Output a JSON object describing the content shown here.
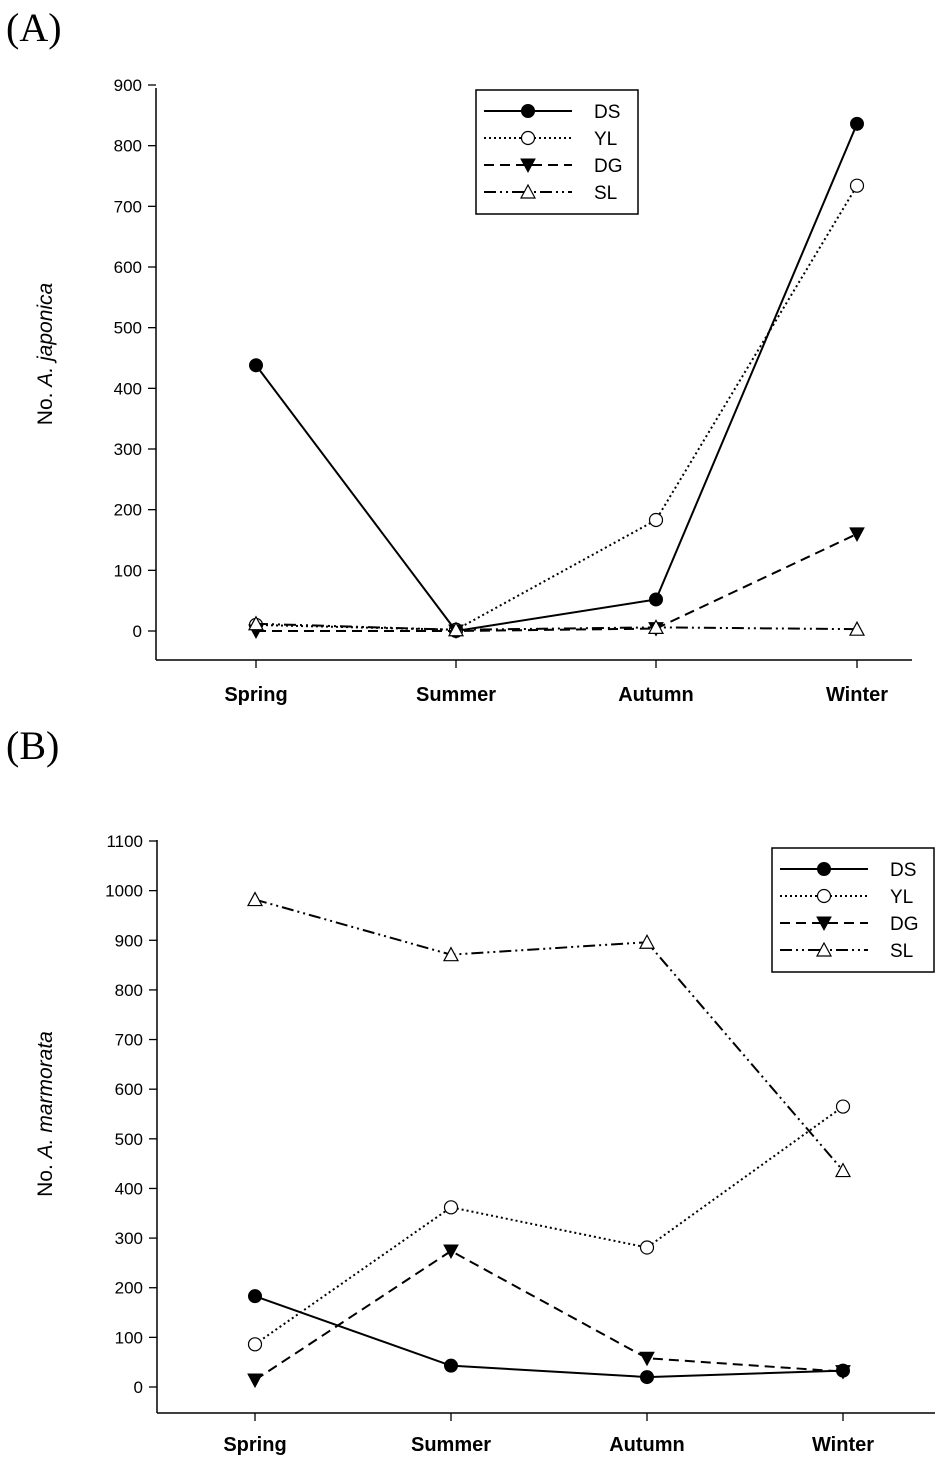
{
  "panels": {
    "a": {
      "label": "(A)"
    },
    "b": {
      "label": "(B)"
    }
  },
  "chart_data": [
    {
      "type": "line",
      "categories": [
        "Spring",
        "Summer",
        "Autumn",
        "Winter"
      ],
      "ylabel_prefix": "No. ",
      "ylabel_species": "A. japonica",
      "ylim": [
        0,
        900
      ],
      "yticks": [
        0,
        100,
        200,
        300,
        400,
        500,
        600,
        700,
        800,
        900
      ],
      "grid": false,
      "legend_position": "top-center",
      "series": [
        {
          "name": "DS",
          "values": [
            438,
            0,
            52,
            836
          ],
          "marker": "filled-circle",
          "dash": "solid"
        },
        {
          "name": "YL",
          "values": [
            10,
            2,
            183,
            734
          ],
          "marker": "open-circle",
          "dash": "dotted"
        },
        {
          "name": "DG",
          "values": [
            0,
            0,
            4,
            160
          ],
          "marker": "filled-triangle-down",
          "dash": "dashed"
        },
        {
          "name": "SL",
          "values": [
            12,
            2,
            6,
            3
          ],
          "marker": "open-triangle-up",
          "dash": "dash-dot-dot"
        }
      ]
    },
    {
      "type": "line",
      "categories": [
        "Spring",
        "Summer",
        "Autumn",
        "Winter"
      ],
      "ylabel_prefix": "No. ",
      "ylabel_species": "A. marmorata",
      "ylim": [
        0,
        1100
      ],
      "yticks": [
        0,
        100,
        200,
        300,
        400,
        500,
        600,
        700,
        800,
        900,
        1000,
        1100
      ],
      "grid": false,
      "legend_position": "top-right",
      "series": [
        {
          "name": "DS",
          "values": [
            183,
            43,
            20,
            33
          ],
          "marker": "filled-circle",
          "dash": "solid"
        },
        {
          "name": "YL",
          "values": [
            86,
            362,
            281,
            565
          ],
          "marker": "open-circle",
          "dash": "dotted"
        },
        {
          "name": "DG",
          "values": [
            14,
            274,
            58,
            31
          ],
          "marker": "filled-triangle-down",
          "dash": "dashed"
        },
        {
          "name": "SL",
          "values": [
            982,
            871,
            896,
            436
          ],
          "marker": "open-triangle-up",
          "dash": "dash-dot-dot"
        }
      ]
    }
  ]
}
